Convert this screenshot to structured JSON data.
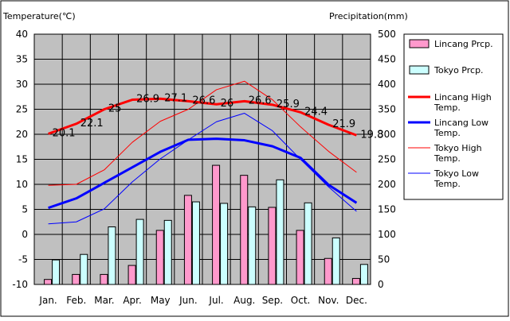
{
  "chart_data": {
    "type": "bar",
    "ylabel_left": "Temperature(℃)",
    "ylabel_right": "Precipitation(mm)",
    "categories": [
      "Jan.",
      "Feb.",
      "Mar.",
      "Apr.",
      "May",
      "Jun.",
      "Jul.",
      "Aug.",
      "Sep.",
      "Oct.",
      "Nov.",
      "Dec."
    ],
    "ylim_left": [
      -10,
      40
    ],
    "yticks_left": [
      -10,
      -5,
      0,
      5,
      10,
      15,
      20,
      25,
      30,
      35,
      40
    ],
    "ylim_right": [
      0,
      500
    ],
    "yticks_right": [
      0,
      50,
      100,
      150,
      200,
      250,
      300,
      350,
      400,
      450,
      500
    ],
    "grid": true,
    "legend_position": "right",
    "bar_series": [
      {
        "name": "Lincang Prcp.",
        "axis": "right",
        "color": "#ff99cc",
        "values": [
          10,
          20,
          20,
          38,
          108,
          178,
          238,
          218,
          154,
          108,
          52,
          12
        ]
      },
      {
        "name": "Tokyo Prcp.",
        "axis": "right",
        "color": "#ccffff",
        "values": [
          49,
          60,
          115,
          130,
          128,
          165,
          162,
          155,
          209,
          163,
          93,
          40
        ]
      }
    ],
    "line_series": [
      {
        "name": "Lincang High Temp.",
        "axis": "left",
        "color": "#ff0000",
        "width": 3,
        "values": [
          20.1,
          22.1,
          25,
          26.9,
          27.1,
          26.6,
          26,
          26.6,
          25.9,
          24.4,
          21.9,
          19.8
        ],
        "labels": [
          "20.1",
          "22.1",
          "25",
          "26.9",
          "27.1",
          "26.6",
          "26",
          "26.6",
          "25.9",
          "24.4",
          "21.9",
          "19.8"
        ]
      },
      {
        "name": "Lincang Low Temp.",
        "axis": "left",
        "color": "#0000ff",
        "width": 3,
        "values": [
          5.3,
          7.2,
          10.3,
          13.4,
          16.5,
          18.9,
          19.1,
          18.8,
          17.6,
          15.3,
          9.9,
          6.3
        ]
      },
      {
        "name": "Tokyo High Temp.",
        "axis": "left",
        "color": "#ff0000",
        "width": 1,
        "values": [
          9.8,
          10.0,
          12.9,
          18.4,
          22.6,
          25.0,
          28.9,
          30.6,
          26.9,
          21.5,
          16.6,
          12.4
        ]
      },
      {
        "name": "Tokyo Low Temp.",
        "axis": "left",
        "color": "#0000ff",
        "width": 1,
        "values": [
          2.1,
          2.5,
          5.1,
          10.5,
          15.1,
          18.9,
          22.5,
          24.2,
          20.7,
          15.0,
          9.5,
          4.6
        ]
      }
    ]
  }
}
